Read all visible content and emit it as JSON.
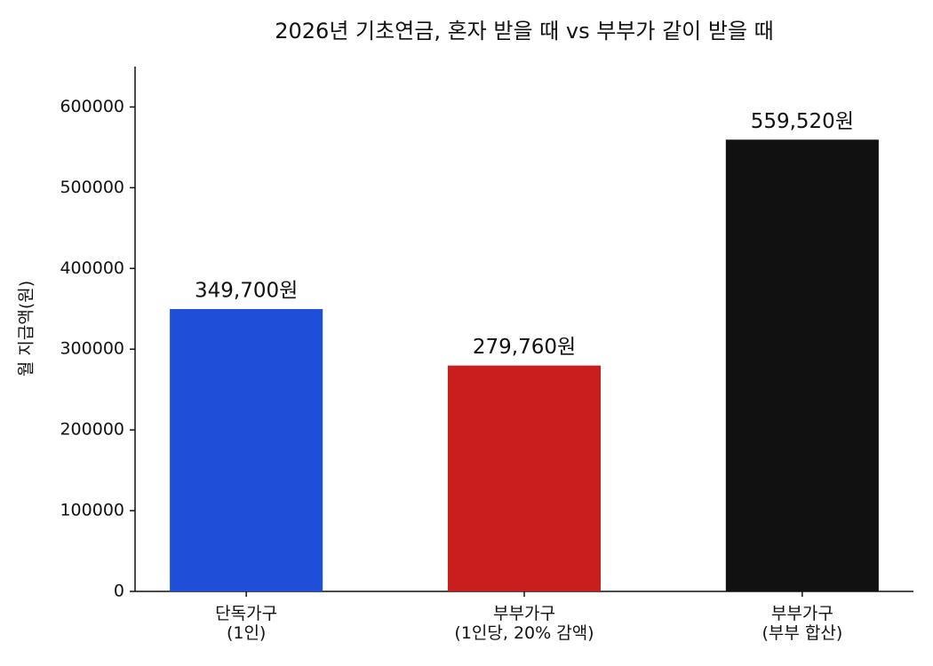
{
  "chart_data": {
    "type": "bar",
    "title": "2026년 기초연금, 혼자 받을 때 vs 부부가 같이 받을 때",
    "ylabel": "월 지급액(원)",
    "categories": [
      "단독가구\n(1인)",
      "부부가구\n(1인당, 20% 감액)",
      "부부가구\n(부부 합산)"
    ],
    "values": [
      349700,
      279760,
      559520
    ],
    "value_labels": [
      "349,700원",
      "279,760원",
      "559,520원"
    ],
    "colors": [
      "#1f4fd8",
      "#c81e1e",
      "#111111"
    ],
    "ylim": [
      0,
      650000
    ],
    "yticks": [
      0,
      100000,
      200000,
      300000,
      400000,
      500000,
      600000
    ],
    "grid": false
  }
}
